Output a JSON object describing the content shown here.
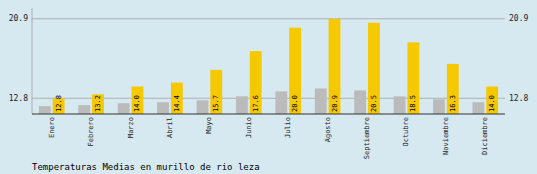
{
  "chart_data": {
    "type": "bar",
    "title": "Temperaturas Medias en murillo de rio leza",
    "categories": [
      "Enero",
      "Febrero",
      "Marzo",
      "Abril",
      "Mayo",
      "Junio",
      "Julio",
      "Agosto",
      "Septiembre",
      "Octubre",
      "Noviembre",
      "Diciembre"
    ],
    "series": [
      {
        "color": "#BBBBBB",
        "values": [
          12.0,
          12.1,
          12.3,
          12.4,
          12.6,
          13.0,
          13.5,
          13.8,
          13.6,
          13.0,
          12.7,
          12.4
        ]
      },
      {
        "color": "#F5C800",
        "values": [
          12.8,
          13.2,
          14.0,
          14.4,
          15.7,
          17.6,
          20.0,
          20.9,
          20.5,
          18.5,
          16.3,
          14.0
        ],
        "value_labels": [
          "12.8",
          "13.2",
          "14.0",
          "14.4",
          "15.7",
          "17.6",
          "20.0",
          "20.9",
          "20.5",
          "18.5",
          "16.3",
          "14.0"
        ],
        "data_labels": true
      }
    ],
    "ylim": [
      11.2,
      22.0
    ],
    "yticks": [
      12.8,
      20.9
    ],
    "y2lim": [
      11.2,
      22.0
    ],
    "y2ticks": [
      12.8,
      20.9
    ],
    "grid": true
  }
}
